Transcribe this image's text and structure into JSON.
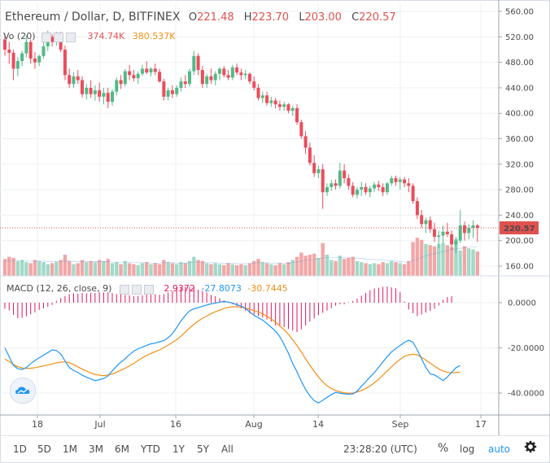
{
  "header": {
    "symbol": "Ethereum / Dollar, D, BITFINEX",
    "open_label": "O",
    "open": "221.48",
    "high_label": "H",
    "high": "223.70",
    "low_label": "L",
    "low": "203.00",
    "close_label": "C",
    "close": "220.57"
  },
  "volume_legend": {
    "label": "Vo",
    "length": "20",
    "value": "374.74K",
    "ma_value": "380.537K"
  },
  "macd_legend": {
    "label": "MACD (12, 26, close, 9)",
    "histogram": "2.9372",
    "macd": "-27.8073",
    "signal": "-30.7445"
  },
  "last_price_badge": "220.57",
  "toolbar": {
    "ranges": [
      "1D",
      "5D",
      "1M",
      "3M",
      "6M",
      "YTD",
      "1Y",
      "5Y",
      "All"
    ],
    "time": "23:28:20 (UTC)",
    "percent": "%",
    "log": "log",
    "auto": "auto"
  },
  "colors": {
    "up": "#53b987",
    "down": "#eb4d5c",
    "up_volume": "#a2d9c8",
    "down_volume": "#f3a6a6",
    "macd_line": "#2196f3",
    "signal_line": "#f28f16",
    "histogram": "#e2185b",
    "last_price": "#e0524f"
  },
  "chart_data": [
    {
      "type": "candlestick",
      "title": "Ethereum / Dollar, D, BITFINEX",
      "x_tick_labels": [
        "18",
        "Jul",
        "16",
        "Aug",
        "14",
        "Sep",
        "17"
      ],
      "y_tick_labels": [
        "160.00",
        "200.00",
        "240.00",
        "280.00",
        "320.00",
        "360.00",
        "400.00",
        "440.00",
        "480.00",
        "520.00",
        "560.00"
      ],
      "ylim": [
        140,
        568
      ],
      "grid": true,
      "candles": [
        [
          516,
          525,
          490,
          500
        ],
        [
          500,
          512,
          478,
          495
        ],
        [
          495,
          500,
          452,
          470
        ],
        [
          470,
          488,
          458,
          482
        ],
        [
          482,
          498,
          474,
          494
        ],
        [
          494,
          522,
          488,
          512
        ],
        [
          512,
          516,
          478,
          486
        ],
        [
          486,
          496,
          470,
          480
        ],
        [
          480,
          492,
          474,
          490
        ],
        [
          490,
          512,
          486,
          505
        ],
        [
          505,
          530,
          498,
          520
        ],
        [
          520,
          524,
          505,
          512
        ],
        [
          512,
          528,
          506,
          520
        ],
        [
          520,
          528,
          496,
          500
        ],
        [
          500,
          506,
          452,
          460
        ],
        [
          460,
          470,
          440,
          446
        ],
        [
          446,
          464,
          440,
          458
        ],
        [
          458,
          468,
          446,
          452
        ],
        [
          452,
          458,
          425,
          430
        ],
        [
          430,
          446,
          422,
          440
        ],
        [
          440,
          452,
          424,
          430
        ],
        [
          430,
          444,
          420,
          436
        ],
        [
          436,
          448,
          418,
          426
        ],
        [
          426,
          440,
          414,
          432
        ],
        [
          432,
          440,
          408,
          418
        ],
        [
          418,
          438,
          412,
          434
        ],
        [
          434,
          456,
          428,
          452
        ],
        [
          452,
          460,
          438,
          446
        ],
        [
          446,
          470,
          442,
          466
        ],
        [
          466,
          476,
          452,
          460
        ],
        [
          460,
          468,
          450,
          455
        ],
        [
          455,
          466,
          446,
          462
        ],
        [
          462,
          476,
          458,
          470
        ],
        [
          470,
          482,
          462,
          464
        ],
        [
          464,
          472,
          458,
          470
        ],
        [
          470,
          478,
          460,
          465
        ],
        [
          465,
          470,
          448,
          450
        ],
        [
          450,
          454,
          420,
          426
        ],
        [
          426,
          440,
          420,
          436
        ],
        [
          436,
          444,
          424,
          430
        ],
        [
          430,
          444,
          426,
          440
        ],
        [
          440,
          456,
          434,
          450
        ],
        [
          450,
          460,
          440,
          446
        ],
        [
          446,
          470,
          442,
          466
        ],
        [
          466,
          498,
          460,
          490
        ],
        [
          490,
          494,
          460,
          468
        ],
        [
          468,
          474,
          440,
          446
        ],
        [
          446,
          462,
          440,
          458
        ],
        [
          458,
          470,
          446,
          452
        ],
        [
          452,
          466,
          444,
          462
        ],
        [
          462,
          472,
          452,
          470
        ],
        [
          470,
          474,
          456,
          460
        ],
        [
          460,
          468,
          452,
          456
        ],
        [
          456,
          476,
          452,
          472
        ],
        [
          472,
          478,
          460,
          464
        ],
        [
          464,
          470,
          452,
          460
        ],
        [
          460,
          468,
          454,
          462
        ],
        [
          462,
          464,
          446,
          450
        ],
        [
          450,
          458,
          436,
          440
        ],
        [
          440,
          446,
          420,
          424
        ],
        [
          424,
          434,
          416,
          428
        ],
        [
          428,
          434,
          412,
          416
        ],
        [
          416,
          426,
          410,
          420
        ],
        [
          420,
          424,
          408,
          414
        ],
        [
          414,
          420,
          404,
          410
        ],
        [
          410,
          418,
          404,
          414
        ],
        [
          414,
          416,
          400,
          404
        ],
        [
          404,
          412,
          396,
          408
        ],
        [
          408,
          414,
          382,
          386
        ],
        [
          386,
          390,
          360,
          364
        ],
        [
          364,
          372,
          336,
          346
        ],
        [
          346,
          354,
          318,
          322
        ],
        [
          322,
          334,
          300,
          306
        ],
        [
          306,
          318,
          298,
          312
        ],
        [
          312,
          320,
          250,
          276
        ],
        [
          276,
          290,
          270,
          284
        ],
        [
          284,
          296,
          278,
          290
        ],
        [
          290,
          296,
          280,
          286
        ],
        [
          286,
          322,
          282,
          310
        ],
        [
          310,
          320,
          290,
          298
        ],
        [
          298,
          304,
          280,
          286
        ],
        [
          286,
          292,
          268,
          272
        ],
        [
          272,
          284,
          266,
          280
        ],
        [
          280,
          292,
          270,
          284
        ],
        [
          284,
          290,
          272,
          276
        ],
        [
          276,
          286,
          268,
          282
        ],
        [
          282,
          292,
          276,
          288
        ],
        [
          288,
          294,
          278,
          284
        ],
        [
          284,
          290,
          270,
          276
        ],
        [
          276,
          292,
          272,
          290
        ],
        [
          290,
          302,
          286,
          298
        ],
        [
          298,
          302,
          286,
          292
        ],
        [
          292,
          300,
          280,
          296
        ],
        [
          296,
          300,
          284,
          290
        ],
        [
          290,
          298,
          276,
          286
        ],
        [
          286,
          290,
          258,
          262
        ],
        [
          262,
          268,
          234,
          240
        ],
        [
          240,
          248,
          220,
          226
        ],
        [
          226,
          236,
          212,
          232
        ],
        [
          232,
          238,
          212,
          218
        ],
        [
          218,
          228,
          198,
          206
        ],
        [
          206,
          216,
          188,
          208
        ],
        [
          208,
          224,
          196,
          214
        ],
        [
          214,
          228,
          206,
          210
        ],
        [
          210,
          216,
          186,
          194
        ],
        [
          194,
          206,
          180,
          200
        ],
        [
          200,
          248,
          196,
          224
        ],
        [
          224,
          230,
          200,
          212
        ],
        [
          212,
          226,
          202,
          220
        ],
        [
          220,
          232,
          204,
          224
        ],
        [
          224,
          226,
          198,
          220
        ]
      ],
      "volume": [
        32,
        36,
        34,
        28,
        30,
        26,
        24,
        30,
        28,
        26,
        22,
        24,
        26,
        30,
        40,
        28,
        22,
        24,
        30,
        26,
        28,
        26,
        30,
        28,
        32,
        24,
        26,
        22,
        28,
        24,
        22,
        20,
        24,
        26,
        22,
        24,
        22,
        30,
        26,
        24,
        22,
        26,
        24,
        28,
        36,
        30,
        28,
        24,
        22,
        24,
        22,
        20,
        24,
        22,
        20,
        22,
        20,
        24,
        28,
        32,
        26,
        24,
        22,
        20,
        24,
        22,
        26,
        30,
        36,
        44,
        38,
        40,
        42,
        34,
        62,
        40,
        30,
        28,
        38,
        32,
        34,
        36,
        28,
        26,
        24,
        22,
        24,
        22,
        26,
        24,
        28,
        26,
        24,
        22,
        28,
        64,
        72,
        68,
        60,
        58,
        56,
        60,
        62,
        58,
        54,
        70,
        48,
        56,
        52,
        50,
        46
      ],
      "volume_ma": [
        28,
        28,
        29,
        29,
        29,
        28,
        28,
        28,
        28,
        28,
        27,
        27,
        27,
        27,
        28,
        28,
        27,
        27,
        27,
        27,
        27,
        27,
        27,
        27,
        27,
        26,
        26,
        26,
        26,
        26,
        25,
        25,
        25,
        25,
        24,
        24,
        24,
        25,
        25,
        25,
        24,
        24,
        24,
        25,
        26,
        26,
        26,
        25,
        25,
        25,
        24,
        24,
        24,
        24,
        23,
        23,
        23,
        23,
        24,
        25,
        25,
        25,
        24,
        24,
        24,
        24,
        24,
        25,
        26,
        28,
        29,
        30,
        31,
        32,
        34,
        35,
        35,
        35,
        35,
        34,
        34,
        34,
        33,
        33,
        32,
        31,
        31,
        30,
        30,
        29,
        29,
        28,
        27,
        26,
        26,
        29,
        32,
        35,
        38,
        40,
        42,
        44,
        46,
        48,
        49,
        51,
        52,
        53,
        54,
        55,
        55
      ]
    },
    {
      "type": "macd",
      "title": "MACD (12, 26, close, 9)",
      "y_tick_labels": [
        "0.0000",
        "-20.0000",
        "-40.0000"
      ],
      "ylim": [
        -48,
        12
      ],
      "macd": [
        -20.0,
        -23.9,
        -27.8,
        -29.2,
        -29.6,
        -28.7,
        -27.0,
        -25.6,
        -24.4,
        -23.2,
        -22.1,
        -20.9,
        -21.2,
        -22.7,
        -25.8,
        -28.7,
        -30.0,
        -30.9,
        -32.1,
        -33.0,
        -33.8,
        -34.5,
        -34.1,
        -33.6,
        -32.4,
        -30.2,
        -28.1,
        -26.3,
        -24.8,
        -23.0,
        -21.5,
        -20.4,
        -19.7,
        -18.9,
        -18.2,
        -17.9,
        -17.3,
        -16.8,
        -15.5,
        -13.7,
        -11.0,
        -8.1,
        -5.6,
        -3.6,
        -2.7,
        -2.2,
        -1.5,
        -1.0,
        -0.5,
        -0.2,
        0.3,
        0.5,
        0.3,
        -0.2,
        -0.9,
        -1.5,
        -2.5,
        -4.1,
        -5.6,
        -6.7,
        -7.7,
        -9.2,
        -10.9,
        -12.6,
        -15.0,
        -18.5,
        -22.4,
        -26.9,
        -30.6,
        -34.8,
        -38.4,
        -41.3,
        -43.4,
        -44.4,
        -43.2,
        -41.9,
        -40.7,
        -39.7,
        -40.1,
        -40.4,
        -40.5,
        -40.4,
        -39.2,
        -37.0,
        -35.0,
        -32.9,
        -31.0,
        -28.6,
        -26.2,
        -23.9,
        -21.8,
        -20.3,
        -18.9,
        -17.6,
        -16.6,
        -17.5,
        -20.9,
        -24.9,
        -28.7,
        -31.5,
        -32.0,
        -33.1,
        -34.5,
        -32.9,
        -30.8,
        -28.8,
        -27.8
      ],
      "signal": [
        -25.0,
        -26.0,
        -27.4,
        -28.3,
        -28.9,
        -29.1,
        -29.0,
        -28.8,
        -28.4,
        -28.0,
        -27.6,
        -27.2,
        -26.6,
        -26.3,
        -26.2,
        -26.6,
        -27.4,
        -28.4,
        -29.4,
        -30.3,
        -31.1,
        -31.8,
        -32.1,
        -32.3,
        -32.0,
        -31.6,
        -30.8,
        -29.9,
        -29.0,
        -28.0,
        -26.9,
        -25.6,
        -24.4,
        -23.4,
        -22.4,
        -21.7,
        -20.9,
        -19.9,
        -18.8,
        -17.6,
        -16.4,
        -14.8,
        -13.0,
        -11.2,
        -9.6,
        -8.1,
        -6.9,
        -5.9,
        -4.9,
        -4.0,
        -3.3,
        -2.6,
        -2.1,
        -1.8,
        -1.8,
        -2.0,
        -2.4,
        -2.9,
        -3.5,
        -4.1,
        -5.0,
        -6.0,
        -7.2,
        -8.6,
        -10.2,
        -12.0,
        -14.0,
        -16.4,
        -19.0,
        -21.8,
        -24.9,
        -27.7,
        -30.4,
        -32.9,
        -35.1,
        -36.8,
        -38.0,
        -38.9,
        -39.5,
        -39.9,
        -40.1,
        -40.0,
        -39.5,
        -38.9,
        -38.0,
        -36.9,
        -35.5,
        -33.9,
        -32.1,
        -30.2,
        -28.4,
        -26.6,
        -25.1,
        -23.8,
        -23.1,
        -22.8,
        -23.1,
        -24.2,
        -25.4,
        -26.8,
        -28.1,
        -29.3,
        -30.3,
        -30.8,
        -31.1,
        -30.9,
        -30.7
      ],
      "histogram": [
        -2.7,
        -3.4,
        -5.4,
        -6.9,
        -6.7,
        -6.0,
        -5.1,
        -4.3,
        -3.2,
        -2.5,
        -1.8,
        -1.0,
        0.8,
        2.0,
        2.9,
        3.7,
        4.1,
        4.0,
        4.4,
        4.2,
        4.4,
        4.3,
        4.7,
        4.5,
        4.6,
        4.3,
        3.8,
        3.7,
        3.4,
        3.3,
        2.9,
        3.0,
        3.3,
        3.5,
        3.5,
        3.8,
        3.5,
        3.8,
        4.5,
        5.0,
        5.9,
        6.8,
        7.1,
        7.0,
        6.8,
        5.8,
        5.3,
        4.6,
        3.4,
        2.9,
        2.0,
        1.1,
        0.4,
        -0.7,
        -1.5,
        -2.5,
        -3.6,
        -4.7,
        -5.2,
        -5.9,
        -6.6,
        -7.4,
        -8.4,
        -10.0,
        -10.6,
        -10.8,
        -11.6,
        -12.4,
        -13.0,
        -11.8,
        -10.0,
        -8.4,
        -7.0,
        -5.5,
        -4.5,
        -3.5,
        -2.4,
        -1.3,
        -0.7,
        -0.7,
        0.2,
        0.8,
        1.8,
        3.1,
        4.3,
        5.5,
        6.3,
        6.6,
        7.0,
        7.2,
        6.8,
        6.4,
        4.8,
        0.5,
        -3.0,
        -4.7,
        -5.9,
        -5.2,
        -4.4,
        -3.7,
        -2.7,
        -1.2,
        1.3,
        2.5,
        2.9
      ],
      "x_tick_labels": [
        "18",
        "Jul",
        "16",
        "Aug",
        "14",
        "Sep",
        "17"
      ]
    }
  ]
}
